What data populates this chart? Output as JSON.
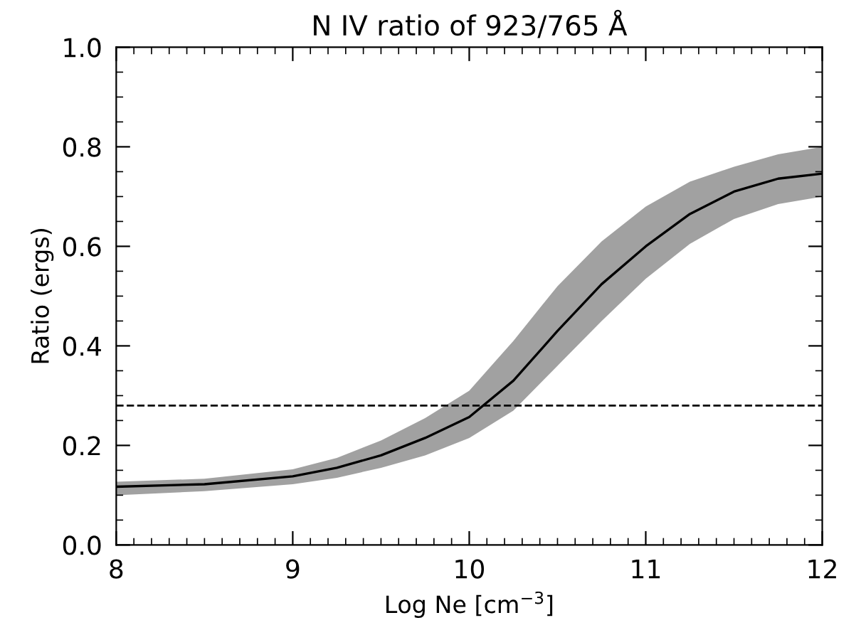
{
  "chart_data": {
    "type": "line",
    "title": "N IV ratio of 923/765 Å",
    "xlabel": "Log Ne [cm$^{−3}$]",
    "ylabel": "Ratio (ergs)",
    "x": [
      8,
      8.5,
      9,
      9.25,
      9.5,
      9.75,
      10,
      10.25,
      10.5,
      10.75,
      11,
      11.25,
      11.5,
      11.75,
      12
    ],
    "series": [
      {
        "color": "#000000",
        "values": [
          0.117,
          0.122,
          0.138,
          0.155,
          0.18,
          0.215,
          0.257,
          0.33,
          0.43,
          0.524,
          0.6,
          0.665,
          0.71,
          0.736,
          0.746
        ],
        "upper": [
          0.127,
          0.133,
          0.152,
          0.175,
          0.21,
          0.255,
          0.31,
          0.41,
          0.52,
          0.61,
          0.68,
          0.73,
          0.76,
          0.785,
          0.8
        ],
        "lower": [
          0.1,
          0.108,
          0.122,
          0.135,
          0.155,
          0.18,
          0.215,
          0.27,
          0.36,
          0.45,
          0.535,
          0.605,
          0.655,
          0.685,
          0.7
        ]
      }
    ],
    "ref_lines": [
      {
        "axis": "y",
        "value": 0.28,
        "color": "#000000",
        "line_style": "dashed"
      }
    ],
    "xlim": [
      8,
      12
    ],
    "xticks": [
      8,
      9,
      10,
      11,
      12
    ],
    "ylim": [
      0.0,
      1.0
    ],
    "yticks": [
      {
        "value": 0.0,
        "label": "0.0"
      },
      {
        "value": 0.2,
        "label": "0.2"
      },
      {
        "value": 0.4,
        "label": "0.4"
      },
      {
        "value": 0.6,
        "label": "0.6"
      },
      {
        "value": 0.8,
        "label": "0.8"
      },
      {
        "value": 1.0,
        "label": "1.0"
      }
    ],
    "grid": false,
    "legend": false
  }
}
